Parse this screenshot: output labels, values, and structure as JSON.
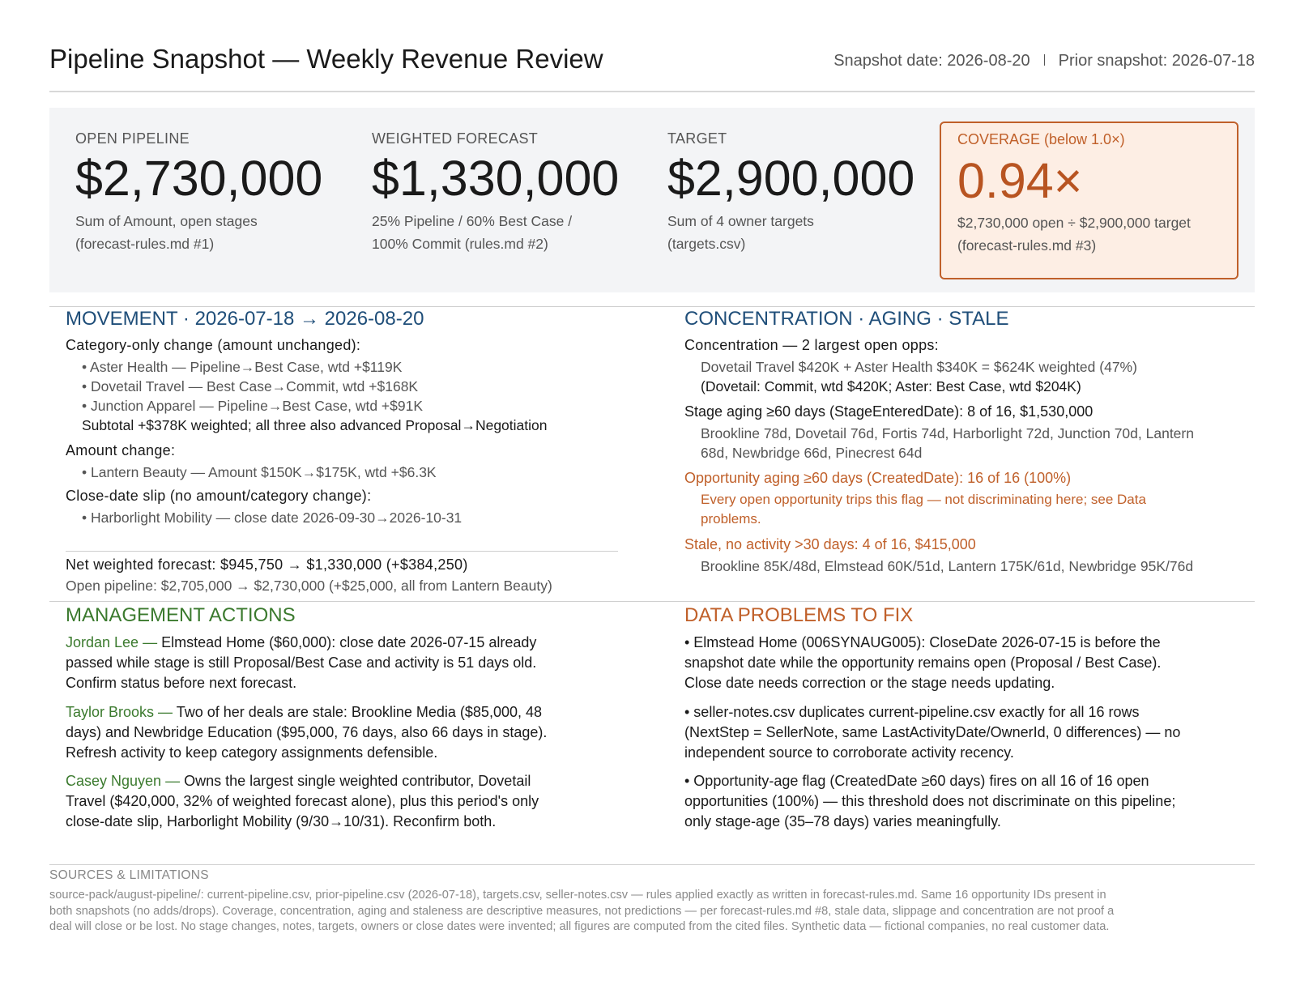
{
  "header": {
    "title": "Pipeline Snapshot — Weekly Revenue Review",
    "snapshot_date": "Snapshot date: 2026-08-20",
    "prior_snapshot": "Prior snapshot: 2026-07-18"
  },
  "kpis": {
    "open_pipeline": {
      "label": "OPEN PIPELINE",
      "value": "$2,730,000",
      "note_line1": "Sum of Amount, open stages",
      "note_line2": "(forecast-rules.md #1)"
    },
    "weighted_forecast": {
      "label": "WEIGHTED FORECAST",
      "value": "$1,330,000",
      "note_line1": "25% Pipeline / 60% Best Case /",
      "note_line2": "100% Commit (rules.md #2)"
    },
    "target": {
      "label": "TARGET",
      "value": "$2,900,000",
      "note_line1": "Sum of 4 owner targets",
      "note_line2": "(targets.csv)"
    },
    "coverage": {
      "label": "COVERAGE  (below 1.0×)",
      "value": "0.94×",
      "note_line1": "$2,730,000 open ÷ $2,900,000 target",
      "note_line2": "(forecast-rules.md #3)",
      "alert_color": "#c0602a"
    }
  },
  "movement": {
    "title": "MOVEMENT  ·  2026-07-18 → 2026-08-20",
    "category_heading": "Category-only change (amount unchanged):",
    "category_items": [
      "• Aster Health — Pipeline→Best Case, wtd +$119K",
      "• Dovetail Travel — Best Case→Commit, wtd +$168K",
      "• Junction Apparel — Pipeline→Best Case, wtd +$91K"
    ],
    "category_subtotal": "Subtotal +$378K weighted; all three also advanced Proposal→Negotiation",
    "amount_heading": "Amount change:",
    "amount_items": [
      "• Lantern Beauty — Amount $150K→$175K, wtd +$6.3K"
    ],
    "slip_heading": "Close-date slip (no amount/category change):",
    "slip_items": [
      "• Harborlight Mobility — close date 2026-09-30→2026-10-31"
    ],
    "net_weighted": "Net weighted forecast: $945,750 → $1,330,000 (+$384,250)",
    "open_pipeline_change": "Open pipeline: $2,705,000 → $2,730,000 (+$25,000, all from Lantern Beauty)"
  },
  "concentration": {
    "title": "CONCENTRATION · AGING · STALE",
    "conc_heading": "Concentration — 2 largest open opps:",
    "conc_detail": "Dovetail Travel $420K + Aster Health $340K = $624K weighted (47%)",
    "conc_note": "(Dovetail: Commit, wtd $420K; Aster: Best Case, wtd $204K)",
    "stage_heading": "Stage aging ≥60 days (StageEnteredDate): 8 of 16, $1,530,000",
    "stage_line1": "Brookline 78d, Dovetail 76d, Fortis 74d, Harborlight 72d, Junction 70d, Lantern",
    "stage_line2": "68d, Newbridge 66d, Pinecrest 64d",
    "opp_heading": "Opportunity aging ≥60 days (CreatedDate): 16 of 16 (100%)",
    "opp_line1": "Every open opportunity trips this flag — not discriminating here; see Data",
    "opp_line2": "problems.",
    "stale_heading": "Stale, no activity >30 days: 4 of 16, $415,000",
    "stale_detail": "Brookline 85K/48d, Elmstead 60K/51d, Lantern 175K/61d, Newbridge 95K/76d"
  },
  "actions": {
    "title": "MANAGEMENT ACTIONS",
    "items": [
      {
        "owner": "Jordan Lee —",
        "line1": "Elmstead Home ($60,000): close date 2026-07-15 already",
        "line2": "passed while stage is still Proposal/Best Case and activity is 51 days old.",
        "line3": "Confirm status before next forecast."
      },
      {
        "owner": "Taylor Brooks —",
        "line1": "Two of her deals are stale: Brookline Media ($85,000, 48",
        "line2": "days) and Newbridge Education ($95,000, 76 days, also 66 days in stage).",
        "line3": "Refresh activity to keep category assignments defensible."
      },
      {
        "owner": "Casey Nguyen —",
        "line1": "Owns the largest single weighted contributor, Dovetail",
        "line2": "Travel ($420,000, 32% of weighted forecast alone), plus this period's only",
        "line3": "close-date slip, Harborlight Mobility (9/30→10/31). Reconfirm both."
      }
    ]
  },
  "data_problems": {
    "title": "DATA PROBLEMS TO FIX",
    "items": [
      {
        "line1": "• Elmstead Home (006SYNAUG005): CloseDate 2026-07-15 is before the",
        "line2": "snapshot date while the opportunity remains open (Proposal / Best Case).",
        "line3": "Close date needs correction or the stage needs updating."
      },
      {
        "line1": "• seller-notes.csv duplicates current-pipeline.csv exactly for all 16 rows",
        "line2": "(NextStep = SellerNote, same LastActivityDate/OwnerId, 0 differences) — no",
        "line3": "independent source to corroborate activity recency."
      },
      {
        "line1": "• Opportunity-age flag (CreatedDate ≥60 days) fires on all 16 of 16 open",
        "line2": "opportunities (100%) — this threshold does not discriminate on this pipeline;",
        "line3": "only stage-age (35–78 days) varies meaningfully."
      }
    ]
  },
  "sources": {
    "title": "SOURCES & LIMITATIONS",
    "line1": "source-pack/august-pipeline/: current-pipeline.csv, prior-pipeline.csv (2026-07-18), targets.csv, seller-notes.csv — rules applied exactly as written in forecast-rules.md. Same 16 opportunity IDs present in",
    "line2": "both snapshots (no adds/drops). Coverage, concentration, aging and staleness are descriptive measures, not predictions — per forecast-rules.md #8, stale data, slippage and concentration are not proof a",
    "line3": "deal will close or be lost. No stage changes, notes, targets, owners or close dates were invented; all figures are computed from the cited files. Synthetic data — fictional companies, no real customer data."
  },
  "colors": {
    "section_blue": "#1f4e79",
    "section_green": "#3b7a2e",
    "alert_orange": "#c0602a"
  }
}
